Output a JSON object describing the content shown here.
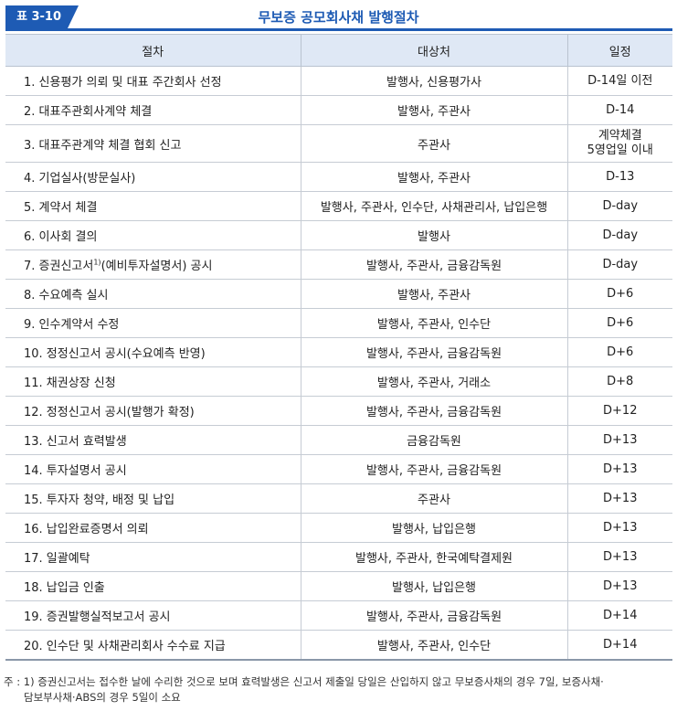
{
  "header": {
    "tag": "표 3-10",
    "title": "무보증 공모회사채 발행절차"
  },
  "table": {
    "columns": [
      "절차",
      "대상처",
      "일정"
    ],
    "rows": [
      {
        "step": "1. 신용평가 의뢰 및 대표 주간회사 선정",
        "target": "발행사, 신용평가사",
        "schedule": "D-14일 이전"
      },
      {
        "step": "2. 대표주관회사계약 체결",
        "target": "발행사, 주관사",
        "schedule": "D-14"
      },
      {
        "step": "3. 대표주관계약 체결 협회 신고",
        "target": "주관사",
        "schedule_line1": "계약체결",
        "schedule_line2": "5영업일 이내"
      },
      {
        "step": "4. 기업실사(방문실사)",
        "target": "발행사, 주관사",
        "schedule": "D-13"
      },
      {
        "step": "5. 계약서 체결",
        "target": "발행사, 주관사, 인수단, 사채관리사, 납입은행",
        "schedule": "D-day"
      },
      {
        "step": "6. 이사회 결의",
        "target": "발행사",
        "schedule": "D-day"
      },
      {
        "step_before": "7. 증권신고서",
        "step_sup": "1)",
        "step_after": "(예비투자설명서) 공시",
        "target": "발행사, 주관사, 금융감독원",
        "schedule": "D-day"
      },
      {
        "step": "8. 수요예측 실시",
        "target": "발행사, 주관사",
        "schedule": "D+6"
      },
      {
        "step": "9. 인수계약서 수정",
        "target": "발행사, 주관사, 인수단",
        "schedule": "D+6"
      },
      {
        "step": "10. 정정신고서 공시(수요예측 반영)",
        "target": "발행사, 주관사, 금융감독원",
        "schedule": "D+6"
      },
      {
        "step": "11. 채권상장 신청",
        "target": "발행사, 주관사, 거래소",
        "schedule": "D+8"
      },
      {
        "step": "12. 정정신고서 공시(발행가 확정)",
        "target": "발행사, 주관사, 금융감독원",
        "schedule": "D+12"
      },
      {
        "step": "13. 신고서 효력발생",
        "target": "금융감독원",
        "schedule": "D+13"
      },
      {
        "step": "14. 투자설명서 공시",
        "target": "발행사, 주관사, 금융감독원",
        "schedule": "D+13"
      },
      {
        "step": "15. 투자자 청약, 배정 및 납입",
        "target": "주관사",
        "schedule": "D+13"
      },
      {
        "step": "16. 납입완료증명서 의뢰",
        "target": "발행사, 납입은행",
        "schedule": "D+13"
      },
      {
        "step": "17. 일괄예탁",
        "target": "발행사, 주관사, 한국예탁결제원",
        "schedule": "D+13"
      },
      {
        "step": "18. 납입금 인출",
        "target": "발행사, 납입은행",
        "schedule": "D+13"
      },
      {
        "step": "19. 증권발행실적보고서 공시",
        "target": "발행사, 주관사, 금융감독원",
        "schedule": "D+14"
      },
      {
        "step": "20. 인수단 및 사채관리회사 수수료 지급",
        "target": "발행사, 주관사, 인수단",
        "schedule": "D+14"
      }
    ]
  },
  "note": {
    "line1": "주 : 1) 증권신고서는 접수한 날에 수리한 것으로 보며 효력발생은 신고서 제출일 당일은 산입하지 않고 무보증사채의 경우 7일, 보증사채·",
    "line2": "담보부사채·ABS의 경우 5일이 소요"
  },
  "colors": {
    "accent": "#1e5bb4",
    "header_fill": "#dfe8f5"
  }
}
